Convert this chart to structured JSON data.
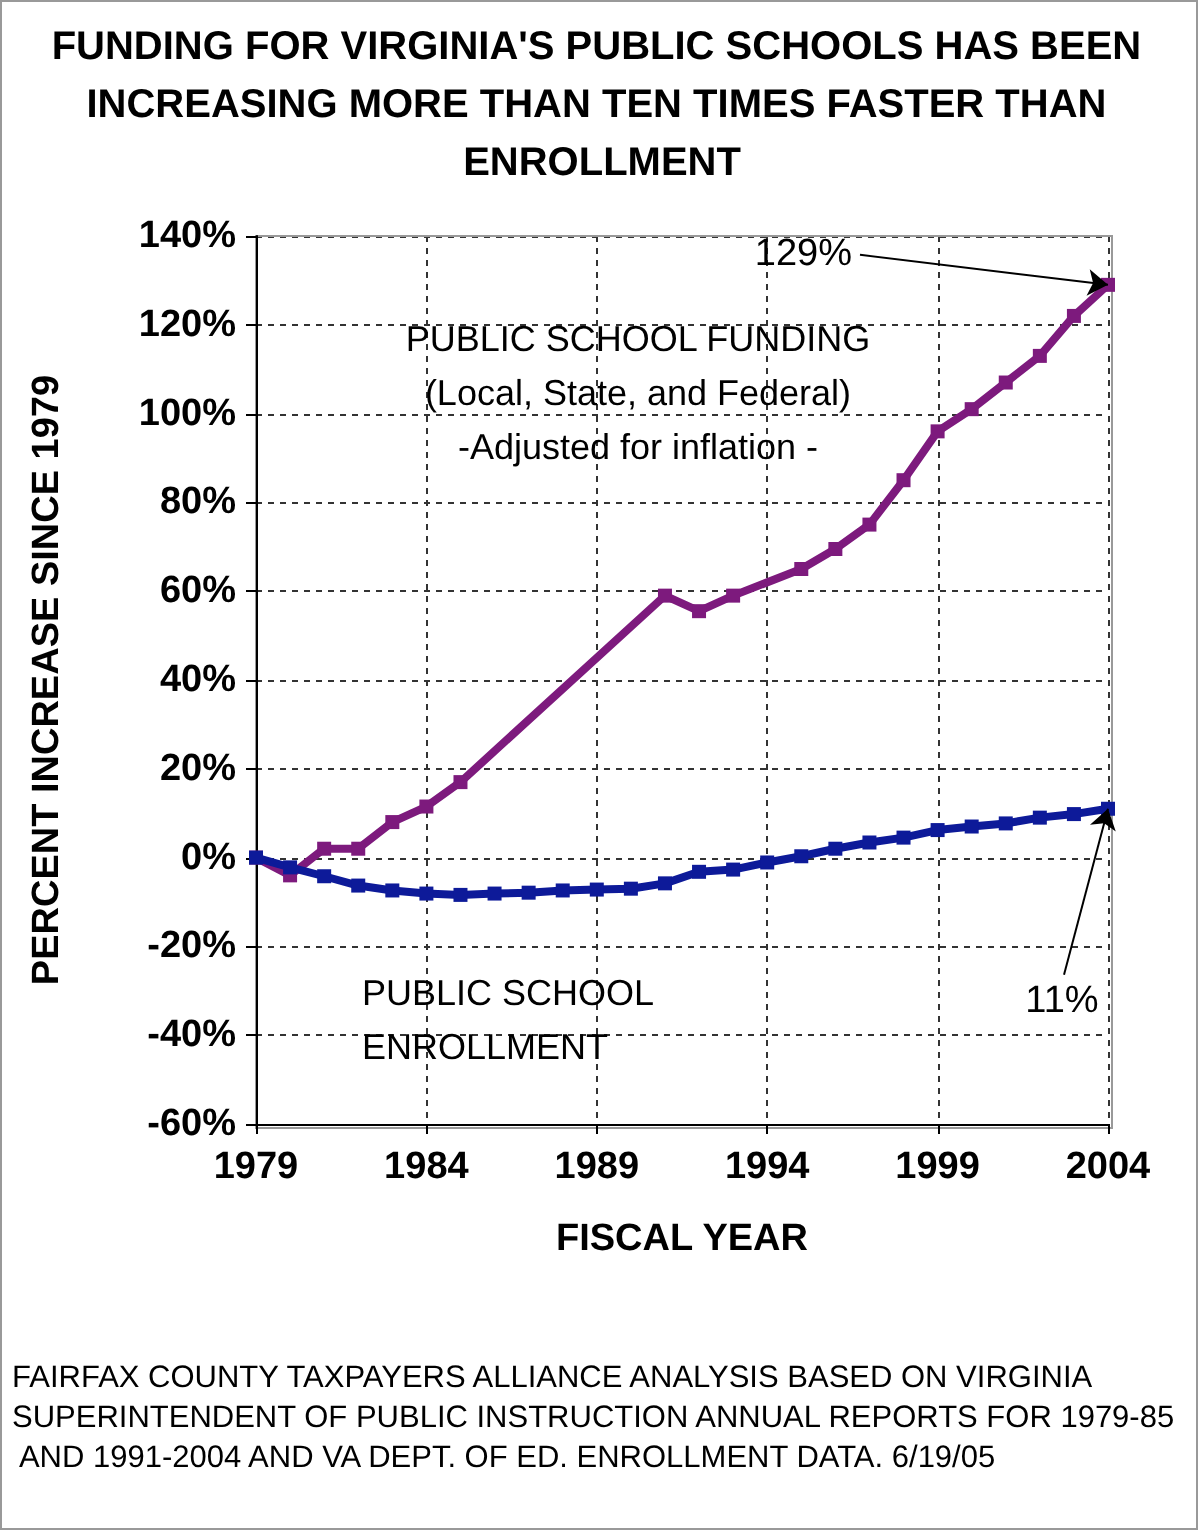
{
  "chart_data": {
    "type": "line",
    "title": "FUNDING FOR VIRGINIA'S PUBLIC SCHOOLS HAS BEEN INCREASING MORE THAN TEN TIMES FASTER THAN ENROLLMENT",
    "xlabel": "FISCAL YEAR",
    "ylabel": "PERCENT INCREASE SINCE 1979",
    "series": [
      {
        "name": "PUBLIC SCHOOL FUNDING\n(Local, State, and Federal)\n-Adjusted for inflation -",
        "color": "#7d1a7d",
        "x": [
          1979,
          1980,
          1981,
          1982,
          1983,
          1984,
          1985,
          1991,
          1992,
          1993,
          1995,
          1996,
          1997,
          1998,
          1999,
          2000,
          2001,
          2002,
          2003,
          2004
        ],
        "values": [
          0,
          -4,
          2,
          2,
          8,
          11.5,
          17,
          59,
          55.5,
          59,
          65,
          69.5,
          75,
          85,
          96,
          101,
          107,
          113,
          122,
          129
        ]
      },
      {
        "name": "PUBLIC SCHOOL\nENROLLMENT",
        "color": "#0d1a99",
        "x": [
          1979,
          1980,
          1981,
          1982,
          1983,
          1984,
          1985,
          1986,
          1987,
          1988,
          1989,
          1990,
          1991,
          1992,
          1993,
          1994,
          1995,
          1996,
          1997,
          1998,
          1999,
          2000,
          2001,
          2002,
          2003,
          2004
        ],
        "values": [
          0,
          -2.2,
          -4.2,
          -6.3,
          -7.4,
          -8.1,
          -8.4,
          -8.1,
          -7.9,
          -7.4,
          -7.2,
          -7,
          -5.8,
          -3.2,
          -2.7,
          -1.1,
          0.3,
          2,
          3.4,
          4.5,
          6.2,
          7,
          7.7,
          9,
          9.8,
          11
        ]
      }
    ],
    "xlim": [
      1979,
      2004
    ],
    "xticks": [
      1979,
      1984,
      1989,
      1994,
      1999,
      2004
    ],
    "ylim": [
      -60,
      140
    ],
    "yticks": [
      {
        "value": -60,
        "label": "-60%"
      },
      {
        "value": -40,
        "label": "-40%"
      },
      {
        "value": -20,
        "label": "-20%"
      },
      {
        "value": 0,
        "label": "0%"
      },
      {
        "value": 20,
        "label": "20%"
      },
      {
        "value": 40,
        "label": "40%"
      },
      {
        "value": 60,
        "label": "60%"
      },
      {
        "value": 80,
        "label": "80%"
      },
      {
        "value": 100,
        "label": "100%"
      },
      {
        "value": 120,
        "label": "120%"
      },
      {
        "value": 140,
        "label": "140%"
      }
    ],
    "annotations": [
      {
        "text": "129%",
        "x": 2004,
        "y": 129
      },
      {
        "text": "11%",
        "x": 2004,
        "y": 11
      },
      "FAIRFAX COUNTY TAXPAYERS ALLIANCE ANALYSIS BASED ON VIRGINIA SUPERINTENDENT OF PUBLIC INSTRUCTION ANNUAL REPORTS FOR 1979-85 AND 1991-2004 AND VA DEPT. OF ED. ENROLLMENT DATA. 6/19/05"
    ],
    "grid": true,
    "legend": false,
    "marker": "square",
    "line_style": "solid"
  }
}
